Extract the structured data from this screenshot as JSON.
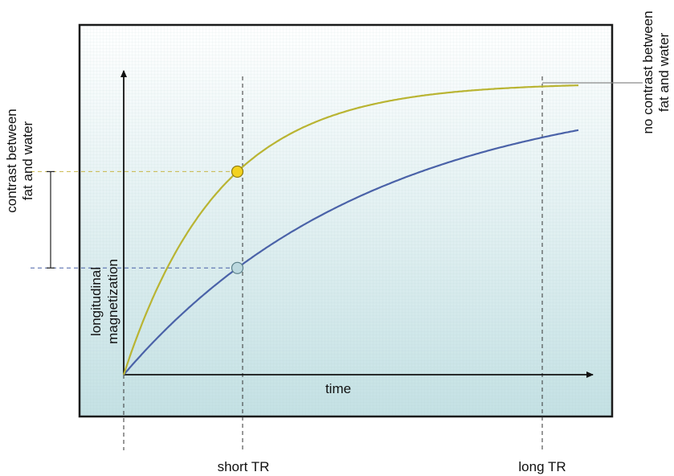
{
  "labels": {
    "y_axis_line1": "longitudinal",
    "y_axis_line2": "magnetization",
    "x_axis": "time",
    "short_tr": "short TR",
    "long_tr": "long TR",
    "contrast_line1": "contrast between",
    "contrast_line2": "fat and water",
    "no_contrast_line1": "no contrast between",
    "no_contrast_line2": "fat and water"
  },
  "colors": {
    "fat_curve": "#b9b432",
    "water_curve": "#4a62a8",
    "fat_point": "#f3d21e",
    "water_point": "#bcd9df",
    "background_top": "#ffffff",
    "background_bottom": "#c4e1e4",
    "frame": "#1a1a1a"
  },
  "chart_data": {
    "type": "line",
    "curves": [
      {
        "id": "fat",
        "rate": 3.4,
        "color": "#b9b432"
      },
      {
        "id": "water",
        "rate": 1.3,
        "color": "#4a62a8"
      }
    ],
    "short_tr": 0.35,
    "long_tr": 1.27,
    "time_range": [
      0,
      1.4
    ],
    "magnetization_range": [
      0,
      1
    ]
  }
}
